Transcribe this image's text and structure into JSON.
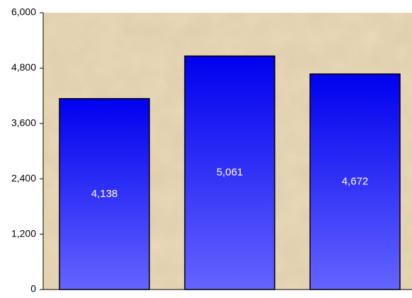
{
  "chart_data": {
    "type": "bar",
    "title": "",
    "xlabel": "",
    "ylabel": "",
    "categories": [
      "",
      "",
      ""
    ],
    "values": [
      4138,
      5061,
      4672
    ],
    "data_labels": [
      "4,138",
      "5,061",
      "4,672"
    ],
    "ylim": [
      0,
      6000
    ],
    "yticks": [
      0,
      1200,
      2400,
      3600,
      4800,
      6000
    ],
    "ytick_labels": [
      "0",
      "1,200",
      "2,400",
      "3,600",
      "4,800",
      "6,000"
    ],
    "grid": false,
    "legend": "none",
    "colors": {
      "bar_top": "#0000ee",
      "bar_bottom": "#6464ff",
      "bar_outline": "#000000",
      "plot_background": "#ead9b8",
      "data_label": "#ffffff"
    }
  }
}
